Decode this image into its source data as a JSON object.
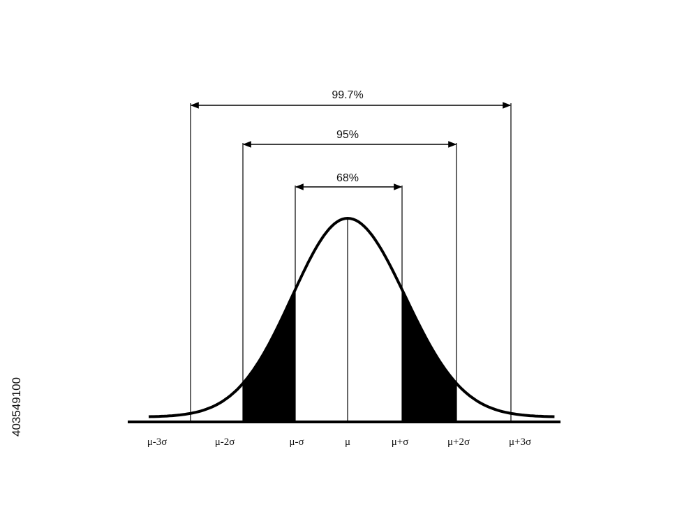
{
  "diagram": {
    "x_labels": [
      "μ-3σ",
      "μ-2σ",
      "μ-σ",
      "μ",
      "μ+σ",
      "μ+2σ",
      "μ+3σ"
    ],
    "intervals": [
      {
        "label": "68%"
      },
      {
        "label": "95%"
      },
      {
        "label": "99.7%"
      }
    ],
    "shading": "fill between μ-2σ and μ-σ, and between μ+σ and μ+2σ",
    "stroke_color": "#000000",
    "fill_color": "#000000"
  },
  "watermark": {
    "stock_id": "403549100"
  }
}
